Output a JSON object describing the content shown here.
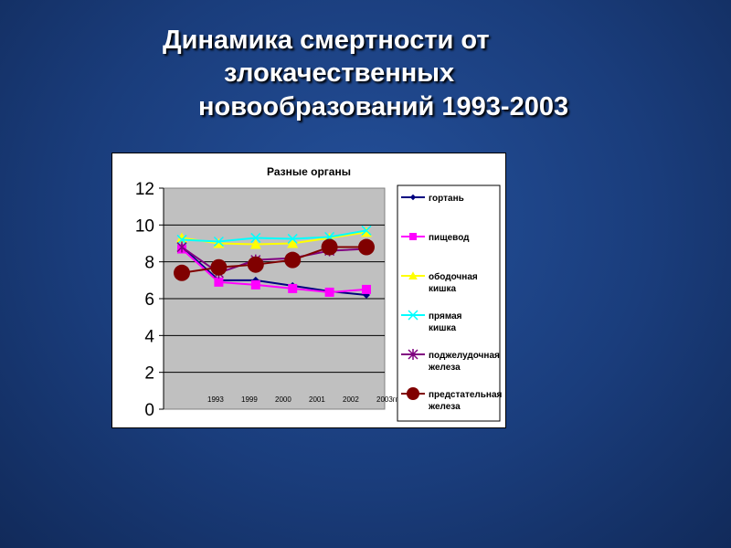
{
  "slide": {
    "title_lines": [
      "Динамика смертности от",
      "злокачественных",
      "новообразований 1993-2003"
    ]
  },
  "chart_data": {
    "type": "line",
    "title": "Разные органы",
    "categories": [
      "1993",
      "1999",
      "2000",
      "2001",
      "2002",
      "2003гг"
    ],
    "ylim": [
      0,
      12
    ],
    "yticks": [
      0,
      2,
      4,
      6,
      8,
      10,
      12
    ],
    "grid": true,
    "plot_background": "#c0c0c0",
    "legend_position": "right",
    "series": [
      {
        "name": "гортань",
        "values": [
          8.8,
          7.0,
          7.0,
          6.7,
          6.4,
          6.2
        ],
        "color": "#000080",
        "marker": "diamond"
      },
      {
        "name": "пищевод",
        "values": [
          8.7,
          6.9,
          6.75,
          6.55,
          6.35,
          6.5
        ],
        "color": "#ff00ff",
        "marker": "square"
      },
      {
        "name": "ободочная кишка",
        "values": [
          9.3,
          9.0,
          8.95,
          9.0,
          9.3,
          9.6
        ],
        "color": "#ffff00",
        "marker": "triangle"
      },
      {
        "name": "прямая кишка",
        "values": [
          9.2,
          9.1,
          9.3,
          9.25,
          9.35,
          9.7
        ],
        "color": "#00ffff",
        "marker": "x"
      },
      {
        "name": "поджелудочная железа",
        "values": [
          8.8,
          7.4,
          8.1,
          8.2,
          8.6,
          8.7
        ],
        "color": "#800080",
        "marker": "star"
      },
      {
        "name": "предстательная железа",
        "values": [
          7.4,
          7.7,
          7.85,
          8.1,
          8.8,
          8.8
        ],
        "color": "#800000",
        "marker": "circle"
      }
    ]
  }
}
